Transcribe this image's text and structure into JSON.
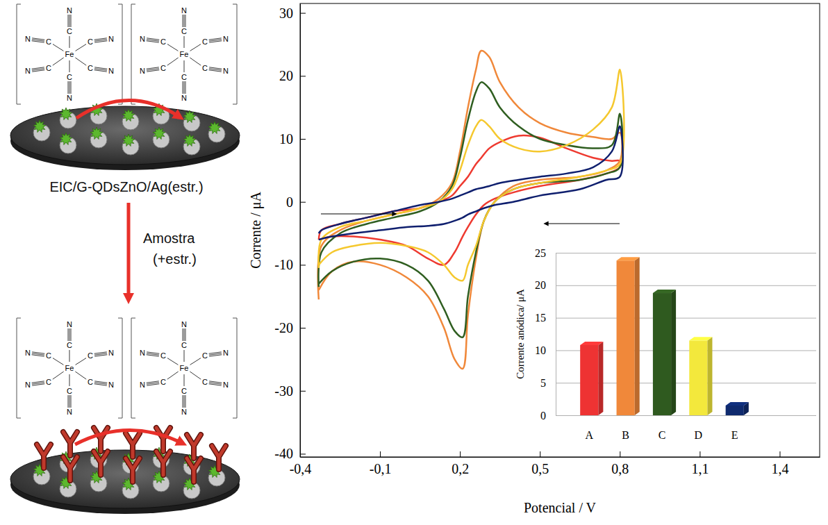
{
  "diagram": {
    "complex": {
      "metal": "Fe",
      "ligand_atoms": [
        "C",
        "N"
      ]
    },
    "electrode_label": "EIC/G-QDsZnO/Ag(estr.)",
    "step_label": [
      "Amostra",
      "(+estr.)"
    ]
  },
  "chart_data": [
    {
      "type": "line",
      "xlabel": "Potencial / V",
      "ylabel": "Corrente / μA",
      "xlim": [
        -0.4,
        1.55
      ],
      "ylim": [
        -40.5,
        31.5
      ],
      "xticks": [
        {
          "value": -0.4,
          "label": "-0,4"
        },
        {
          "value": -0.1,
          "label": "-0,1"
        },
        {
          "value": 0.2,
          "label": "0,2"
        },
        {
          "value": 0.5,
          "label": "0,5"
        },
        {
          "value": 0.8,
          "label": "0,8"
        },
        {
          "value": 1.1,
          "label": "1,1"
        },
        {
          "value": 1.4,
          "label": "1,4"
        }
      ],
      "yticks": [
        -40,
        -30,
        -20,
        -10,
        0,
        10,
        20,
        30
      ],
      "x": [
        -0.33,
        -0.32,
        -0.25,
        -0.15,
        -0.05,
        0.05,
        0.12,
        0.17,
        0.2,
        0.23,
        0.26,
        0.28,
        0.31,
        0.35,
        0.42,
        0.5,
        0.6,
        0.7,
        0.77,
        0.8,
        0.8,
        0.75,
        0.65,
        0.5,
        0.4,
        0.33,
        0.29,
        0.26,
        0.23,
        0.21,
        0.18,
        0.14,
        0.08,
        0.0,
        -0.1,
        -0.2,
        -0.28,
        -0.33
      ],
      "series": [
        {
          "color": "#ee3a30",
          "values": [
            -6,
            -4.5,
            -3.5,
            -2.5,
            -1.5,
            -1,
            0,
            1,
            2.5,
            4,
            6,
            7,
            8.5,
            9.5,
            10.5,
            10.2,
            8.5,
            7,
            6.5,
            6.5,
            5.5,
            4.5,
            3.5,
            2.5,
            1.5,
            0.5,
            -0.5,
            -2,
            -4,
            -5.5,
            -8,
            -10,
            -9,
            -7,
            -6,
            -5.5,
            -5.5,
            -6
          ]
        },
        {
          "color": "#f0883a",
          "values": [
            -15.5,
            -7,
            -4.5,
            -3,
            -2,
            -1,
            0.5,
            3,
            8,
            15,
            21,
            24,
            23,
            19,
            15,
            12.5,
            11,
            10.3,
            10,
            11,
            6.5,
            5,
            4,
            3.5,
            2.5,
            0,
            -3,
            -9,
            -18,
            -26.5,
            -25,
            -20,
            -15,
            -12,
            -10,
            -9.5,
            -11,
            -14
          ]
        },
        {
          "color": "#2f5e20",
          "values": [
            -13.5,
            -8,
            -5,
            -3.5,
            -2.5,
            -1.5,
            0,
            2.5,
            7,
            13,
            17.5,
            19,
            18,
            15,
            12,
            10,
            9,
            8.5,
            9,
            14,
            5.5,
            4.5,
            3.5,
            3,
            2,
            0,
            -3,
            -8,
            -15,
            -21.5,
            -20.5,
            -17,
            -12.5,
            -10,
            -9,
            -9.5,
            -11,
            -13
          ]
        },
        {
          "color": "#f5c82e",
          "values": [
            -10.5,
            -6,
            -4,
            -3,
            -2,
            -1,
            0,
            2,
            5,
            9,
            12,
            13,
            12,
            10,
            8.5,
            8,
            9,
            11.5,
            15,
            21,
            6,
            5,
            4,
            3,
            2,
            0,
            -3,
            -7,
            -10,
            -12.5,
            -12,
            -10,
            -8,
            -7,
            -6.5,
            -7,
            -8,
            -10
          ]
        },
        {
          "color": "#0f1f6e",
          "values": [
            -5,
            -4.5,
            -3.5,
            -2.5,
            -1.5,
            -0.5,
            0,
            0.5,
            1,
            1.5,
            2,
            2.2,
            2.5,
            3,
            3.5,
            4,
            4.5,
            5.5,
            8,
            12,
            4,
            3.5,
            2,
            1,
            0,
            -0.5,
            -1,
            -1.5,
            -2,
            -2.5,
            -3,
            -3.5,
            -3.8,
            -4,
            -4.5,
            -5,
            -5.5,
            -6
          ]
        }
      ]
    },
    {
      "type": "bar",
      "ylabel": "Corrente anódica/ μA",
      "categories": [
        "A",
        "B",
        "C",
        "D",
        "E"
      ],
      "values": [
        10.8,
        23.8,
        18.8,
        11.5,
        1.5
      ],
      "colors": [
        "#ee3333",
        "#f0883a",
        "#2f5a1f",
        "#f3e83c",
        "#0f2a6e"
      ],
      "ylim": [
        0,
        25
      ],
      "yticks": [
        0,
        5,
        10,
        15,
        20,
        25
      ],
      "grid": true
    }
  ]
}
